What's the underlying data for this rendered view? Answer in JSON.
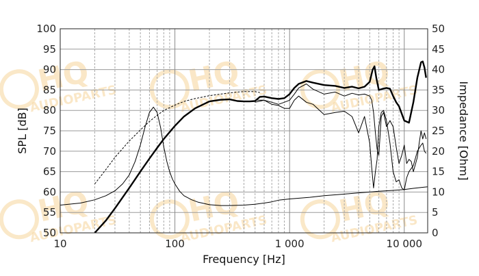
{
  "chart_data": {
    "type": "line",
    "xlabel": "Frequency [Hz]",
    "ylabel_left": "SPL [dB]",
    "ylabel_right": "Impedance [Ohm]",
    "x_scale": "log",
    "xlim": [
      10,
      16000
    ],
    "ylim_left": [
      50,
      100
    ],
    "ylim_right": [
      0,
      50
    ],
    "x_tick_values": [
      10,
      100,
      1000,
      10000
    ],
    "x_tick_labels": [
      "10",
      "100",
      "1 000",
      "10 000"
    ],
    "y_left_ticks": [
      50,
      55,
      60,
      65,
      70,
      75,
      80,
      85,
      90,
      95,
      100
    ],
    "y_right_ticks": [
      0,
      5,
      10,
      15,
      20,
      25,
      30,
      35,
      40,
      45,
      50
    ],
    "grid": true,
    "watermark": "HQ AUDIOPARTS",
    "series": [
      {
        "style": "thick-solid",
        "axis": "left",
        "x": [
          20,
          25,
          30,
          40,
          50,
          60,
          70,
          80,
          100,
          120,
          150,
          200,
          250,
          300,
          350,
          400,
          450,
          500,
          550,
          600,
          700,
          800,
          900,
          1000,
          1100,
          1200,
          1400,
          1600,
          2000,
          2500,
          3000,
          3500,
          4000,
          4500,
          5000,
          5300,
          5500,
          5700,
          6000,
          6500,
          7000,
          7500,
          8000,
          8500,
          9000,
          10000,
          11000,
          12000,
          13000,
          14000,
          14500,
          15000,
          15500
        ],
        "y": [
          50,
          53,
          56,
          61,
          65,
          68.2,
          70.8,
          73,
          76.2,
          78.5,
          80.5,
          82.2,
          82.6,
          82.7,
          82.3,
          82.2,
          82.2,
          82.3,
          83.3,
          83.4,
          83,
          82.8,
          83,
          84,
          85.5,
          86.5,
          87.2,
          86.8,
          86.2,
          86,
          85.5,
          85.8,
          85.4,
          85.8,
          87,
          90,
          90.8,
          88,
          85,
          85.3,
          85.5,
          85.3,
          83.5,
          82,
          81,
          77.5,
          77,
          82,
          88,
          91.8,
          92,
          90.5,
          88
        ]
      },
      {
        "style": "thin-solid",
        "axis": "left",
        "x": [
          500,
          600,
          700,
          800,
          900,
          1000,
          1100,
          1200,
          1400,
          1600,
          2000,
          2500,
          3000,
          3500,
          4000,
          4500,
          5000,
          5200,
          5400,
          5600,
          5800,
          6000,
          6300,
          6600,
          7000,
          7500,
          8000,
          8500,
          9000,
          9500,
          10000,
          10500,
          11000,
          11500,
          12000,
          13000,
          13500,
          14000,
          14500,
          15000,
          15500
        ],
        "y": [
          82.5,
          82.5,
          82,
          81.5,
          82,
          82.5,
          84,
          85.5,
          86.5,
          85.2,
          84,
          84.5,
          83.5,
          84.2,
          83.8,
          84,
          83.5,
          82.5,
          79.5,
          74.5,
          70.5,
          69,
          78.5,
          79.5,
          76,
          77.5,
          76,
          71,
          67,
          69,
          71.5,
          67,
          68,
          67.5,
          65,
          68.5,
          72,
          75,
          73,
          74.5,
          73
        ]
      },
      {
        "style": "thin-solid",
        "axis": "left",
        "x": [
          500,
          600,
          700,
          800,
          900,
          1000,
          1100,
          1200,
          1400,
          1600,
          2000,
          2500,
          3000,
          3500,
          4000,
          4500,
          5000,
          5200,
          5400,
          5600,
          5800,
          6000,
          6300,
          6600,
          7000,
          7500,
          8000,
          8500,
          9000,
          9500,
          10000,
          10500,
          11000,
          12000,
          13000,
          14000,
          14500,
          15000,
          15500
        ],
        "y": [
          82,
          82.5,
          81.5,
          81.2,
          80.5,
          80.5,
          82.5,
          83.5,
          82,
          81.5,
          79,
          79.5,
          79.8,
          78.5,
          74.5,
          78.5,
          72,
          66,
          61,
          65,
          68,
          76,
          79.5,
          80,
          77.5,
          72,
          65,
          62.5,
          63,
          61,
          60.5,
          63.5,
          65,
          66.5,
          70,
          71.5,
          72,
          70,
          69.5
        ]
      },
      {
        "style": "thin-dashed",
        "axis": "left",
        "x": [
          20,
          25,
          30,
          40,
          50,
          60,
          70,
          80,
          100,
          120,
          150,
          200,
          250,
          300,
          350,
          400,
          450,
          500,
          550
        ],
        "y": [
          62,
          65.5,
          68.5,
          72.5,
          75.2,
          77.3,
          78.8,
          80,
          81.3,
          82.2,
          82.9,
          83.6,
          84,
          84.3,
          84.5,
          84.6,
          84.6,
          84.6,
          84.4
        ]
      },
      {
        "style": "thin-solid",
        "axis": "right",
        "x": [
          10,
          15,
          20,
          25,
          30,
          35,
          40,
          45,
          50,
          55,
          60,
          65,
          70,
          75,
          80,
          85,
          90,
          95,
          100,
          110,
          120,
          140,
          160,
          200,
          250,
          300,
          400,
          500,
          600,
          700,
          800,
          1000,
          1500,
          2000,
          3000,
          4000,
          5000,
          6000,
          8000,
          10000,
          12000,
          14000,
          16000
        ],
        "y": [
          6.8,
          7.3,
          8.1,
          9.1,
          10.3,
          12,
          14.2,
          17.5,
          21.5,
          26,
          29.5,
          30.8,
          29.5,
          25.8,
          21,
          17.5,
          15,
          13.2,
          12,
          10.2,
          9.1,
          8.1,
          7.5,
          6.9,
          6.7,
          6.7,
          6.8,
          7.0,
          7.3,
          7.6,
          8.0,
          8.3,
          8.7,
          9.1,
          9.5,
          9.8,
          10.0,
          10.2,
          10.4,
          10.6,
          10.9,
          11.1,
          11.3
        ]
      }
    ]
  }
}
